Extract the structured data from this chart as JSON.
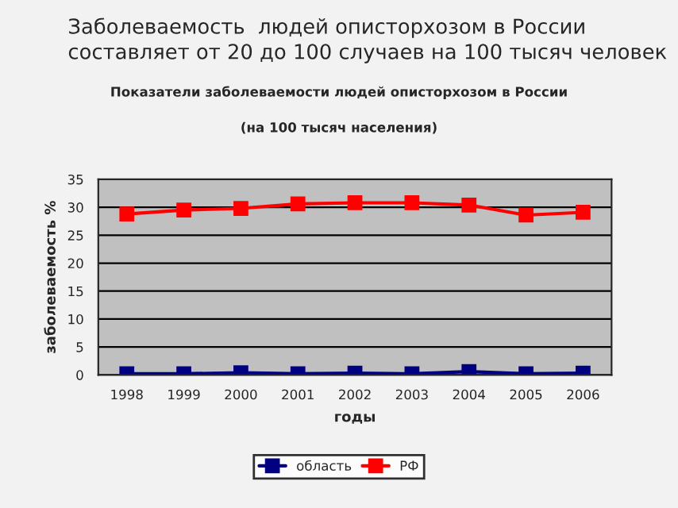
{
  "chart_data": {
    "type": "line",
    "annotations": [
      "Заболеваемость  людей описторхозом в России составляет от 20 до 100 случаев на 100 тысяч человек"
    ],
    "title": "Показатели заболеваемости людей описторхозом в России",
    "subtitle": "(на 100 тысяч населения)",
    "xlabel": "годы",
    "ylabel": "заболеваемость %",
    "categories": [
      "1998",
      "1999",
      "2000",
      "2001",
      "2002",
      "2003",
      "2004",
      "2005",
      "2006"
    ],
    "series": [
      {
        "name": "область",
        "color": "#000080",
        "values": [
          0.2,
          0.2,
          0.4,
          0.2,
          0.3,
          0.2,
          0.6,
          0.2,
          0.3
        ]
      },
      {
        "name": "РФ",
        "color": "#ff0000",
        "values": [
          28.8,
          29.5,
          29.8,
          30.6,
          30.8,
          30.8,
          30.4,
          28.6,
          29.1
        ]
      }
    ],
    "ylim": [
      0,
      35
    ],
    "yticks": [
      0,
      5,
      10,
      15,
      20,
      25,
      30,
      35
    ],
    "grid": "y",
    "legend": "bottom",
    "marker": "square",
    "line_style": "solid"
  }
}
